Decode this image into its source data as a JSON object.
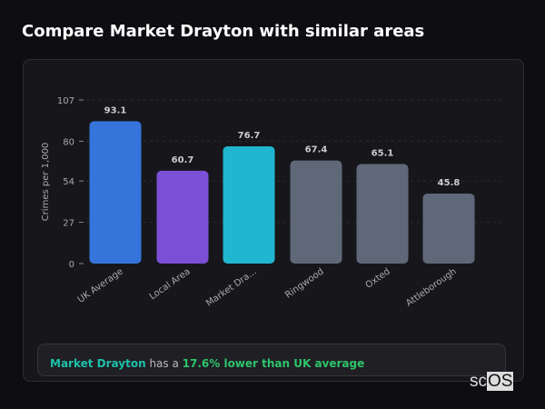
{
  "title": "Compare Market Drayton with similar areas",
  "chart_data": {
    "type": "bar",
    "categories": [
      "UK Average",
      "Local Area",
      "Market Dra...",
      "Ringwood",
      "Oxted",
      "Attleborough"
    ],
    "values": [
      93.1,
      60.7,
      76.7,
      67.4,
      65.1,
      45.8
    ],
    "value_labels": [
      "93.1",
      "60.7",
      "76.7",
      "67.4",
      "65.1",
      "45.8"
    ],
    "colors": [
      "#3575db",
      "#7b4fd6",
      "#21b6cf",
      "#5f6878",
      "#5f6878",
      "#5f6878"
    ],
    "ylabel": "Crimes per 1,000",
    "yticks": [
      0,
      27,
      54,
      80,
      107
    ],
    "ylim": [
      0,
      107
    ],
    "grid": true
  },
  "summary": {
    "place": "Market Drayton",
    "middle": " has a ",
    "comparison": "17.6% lower than UK average"
  },
  "logo": {
    "text": "scOS"
  }
}
